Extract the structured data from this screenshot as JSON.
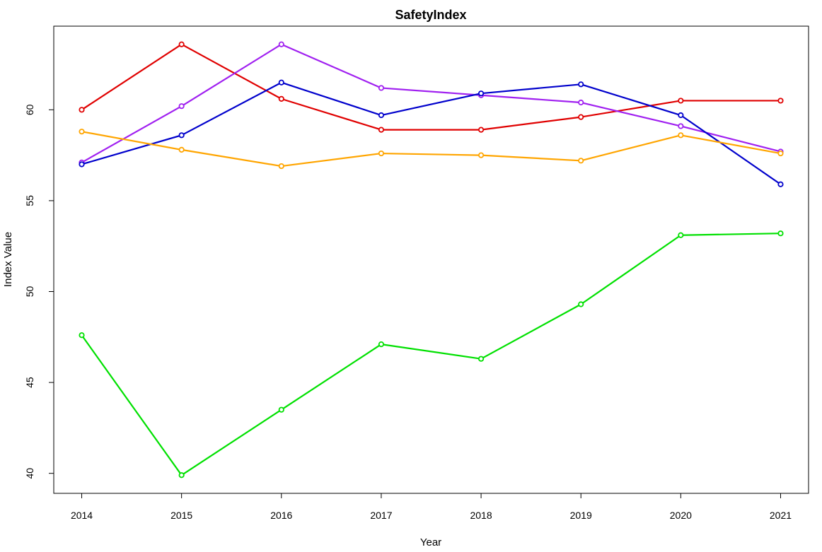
{
  "chart_data": {
    "type": "line",
    "title": "SafetyIndex",
    "xlabel": "Year",
    "ylabel": "Index Value",
    "x": [
      2014,
      2015,
      2016,
      2017,
      2018,
      2019,
      2020,
      2021
    ],
    "x_tick_labels": [
      "2014",
      "2015",
      "2016",
      "2017",
      "2018",
      "2019",
      "2020",
      "2021"
    ],
    "y_ticks": [
      40,
      45,
      50,
      55,
      60
    ],
    "y_tick_labels": [
      "40",
      "45",
      "50",
      "55",
      "60"
    ],
    "xlim": [
      2013.72,
      2021.28
    ],
    "ylim": [
      38.9,
      64.6
    ],
    "grid": false,
    "legend": "none",
    "series": [
      {
        "color": "#e00000",
        "values": [
          60.0,
          63.6,
          60.6,
          58.9,
          58.9,
          59.6,
          60.5,
          60.5
        ]
      },
      {
        "color": "#a020f0",
        "values": [
          57.1,
          60.2,
          63.6,
          61.2,
          60.8,
          60.4,
          59.1,
          57.7
        ]
      },
      {
        "color": "#0000cc",
        "values": [
          57.0,
          58.6,
          61.5,
          59.7,
          60.9,
          61.4,
          59.7,
          55.9
        ]
      },
      {
        "color": "#ffa500",
        "values": [
          58.8,
          57.8,
          56.9,
          57.6,
          57.5,
          57.2,
          58.6,
          57.6
        ]
      },
      {
        "color": "#00e000",
        "values": [
          47.6,
          39.9,
          43.5,
          47.1,
          46.3,
          49.3,
          53.1,
          53.2
        ]
      }
    ]
  }
}
